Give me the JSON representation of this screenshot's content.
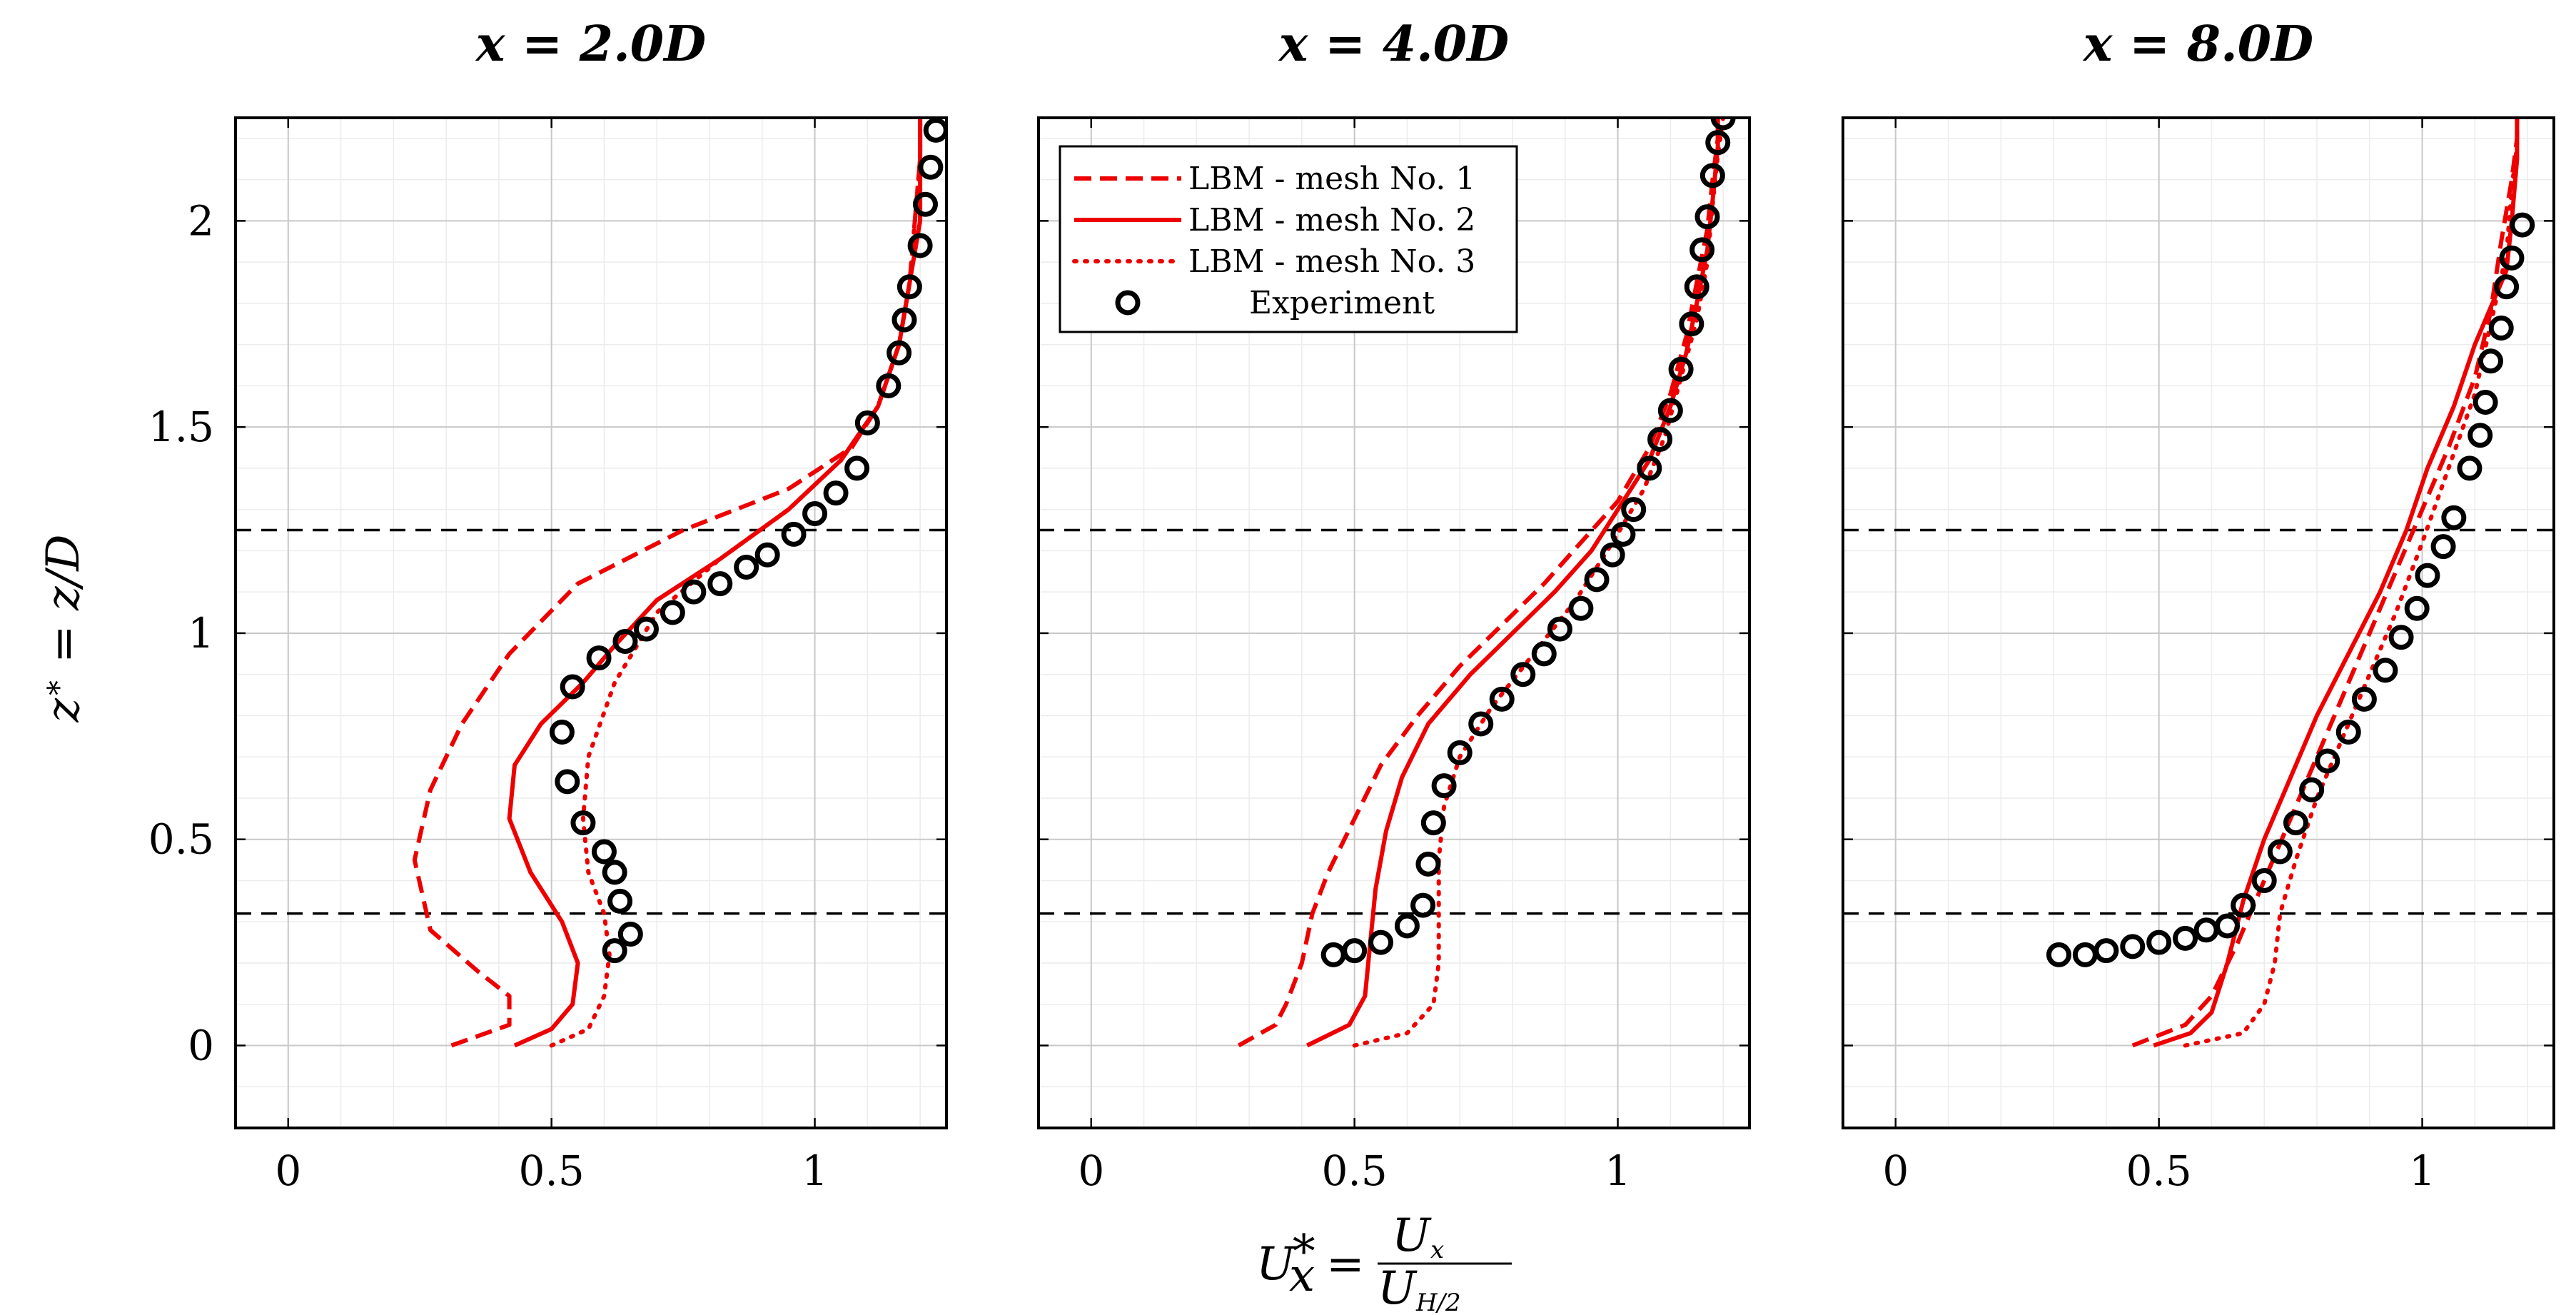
{
  "chart_data": [
    {
      "type": "line",
      "title": "x = 2.0D",
      "xlim": [
        -0.1,
        1.25
      ],
      "ylim": [
        -0.2,
        2.25
      ],
      "xticks": [
        "0",
        "0.5",
        "1"
      ],
      "yticks": [
        "0",
        "0.5",
        "1",
        "1.5",
        "2"
      ],
      "hlines": [
        0.32,
        1.25
      ],
      "series": [
        {
          "name": "LBM - mesh No. 1",
          "style": "dashed",
          "x": [
            0.31,
            0.42,
            0.42,
            0.36,
            0.27,
            0.24,
            0.27,
            0.33,
            0.42,
            0.55,
            0.75,
            0.95,
            1.07,
            1.12,
            1.16,
            1.18,
            1.19,
            1.2,
            1.2
          ],
          "y": [
            0.0,
            0.05,
            0.12,
            0.18,
            0.28,
            0.45,
            0.62,
            0.78,
            0.95,
            1.12,
            1.25,
            1.35,
            1.45,
            1.55,
            1.7,
            1.85,
            2.0,
            2.15,
            2.25
          ]
        },
        {
          "name": "LBM - mesh No. 2",
          "style": "solid",
          "x": [
            0.43,
            0.5,
            0.54,
            0.55,
            0.52,
            0.46,
            0.42,
            0.43,
            0.48,
            0.56,
            0.62,
            0.7,
            0.82,
            0.95,
            1.05,
            1.12,
            1.16,
            1.18,
            1.2,
            1.2
          ],
          "y": [
            0.0,
            0.04,
            0.1,
            0.2,
            0.3,
            0.42,
            0.55,
            0.68,
            0.78,
            0.88,
            0.97,
            1.08,
            1.18,
            1.3,
            1.42,
            1.55,
            1.7,
            1.85,
            2.0,
            2.25
          ]
        },
        {
          "name": "LBM - mesh No. 3",
          "style": "dotted",
          "x": [
            0.5,
            0.57,
            0.6,
            0.61,
            0.6,
            0.57,
            0.56,
            0.57,
            0.62,
            0.7,
            0.82,
            0.95,
            1.05,
            1.12,
            1.16,
            1.18,
            1.19,
            1.2,
            1.2
          ],
          "y": [
            0.0,
            0.04,
            0.12,
            0.22,
            0.32,
            0.42,
            0.55,
            0.7,
            0.88,
            1.05,
            1.18,
            1.3,
            1.42,
            1.55,
            1.7,
            1.85,
            2.0,
            2.15,
            2.25
          ]
        },
        {
          "name": "Experiment",
          "style": "markers",
          "x": [
            0.62,
            0.65,
            0.63,
            0.62,
            0.6,
            0.56,
            0.53,
            0.52,
            0.54,
            0.59,
            0.64,
            0.68,
            0.73,
            0.77,
            0.82,
            0.87,
            0.91,
            0.96,
            1.0,
            1.04,
            1.08,
            1.1,
            1.14,
            1.16,
            1.17,
            1.18,
            1.2,
            1.21,
            1.22,
            1.23
          ],
          "y": [
            0.23,
            0.27,
            0.35,
            0.42,
            0.47,
            0.54,
            0.64,
            0.76,
            0.87,
            0.94,
            0.98,
            1.01,
            1.05,
            1.1,
            1.12,
            1.16,
            1.19,
            1.24,
            1.29,
            1.34,
            1.4,
            1.51,
            1.6,
            1.68,
            1.76,
            1.84,
            1.94,
            2.04,
            2.13,
            2.22
          ]
        }
      ]
    },
    {
      "type": "line",
      "title": "x = 4.0D",
      "xlim": [
        -0.1,
        1.25
      ],
      "ylim": [
        -0.2,
        2.25
      ],
      "xticks": [
        "0",
        "0.5",
        "1"
      ],
      "yticks": [
        "0",
        "0.5",
        "1",
        "1.5",
        "2"
      ],
      "hlines": [
        0.32,
        1.25
      ],
      "series": [
        {
          "name": "LBM - mesh No. 1",
          "style": "dashed",
          "x": [
            0.28,
            0.35,
            0.37,
            0.4,
            0.42,
            0.45,
            0.5,
            0.55,
            0.62,
            0.7,
            0.78,
            0.86,
            0.93,
            1.0,
            1.06,
            1.1,
            1.13,
            1.15,
            1.17,
            1.18,
            1.19,
            1.19
          ],
          "y": [
            0.0,
            0.05,
            0.1,
            0.2,
            0.32,
            0.42,
            0.55,
            0.68,
            0.8,
            0.92,
            1.02,
            1.12,
            1.22,
            1.32,
            1.45,
            1.58,
            1.72,
            1.85,
            1.98,
            2.1,
            2.2,
            2.25
          ]
        },
        {
          "name": "LBM - mesh No. 2",
          "style": "solid",
          "x": [
            0.41,
            0.49,
            0.52,
            0.53,
            0.54,
            0.56,
            0.59,
            0.64,
            0.72,
            0.8,
            0.88,
            0.95,
            1.0,
            1.06,
            1.1,
            1.13,
            1.15,
            1.17,
            1.18,
            1.19,
            1.19
          ],
          "y": [
            0.0,
            0.05,
            0.12,
            0.25,
            0.38,
            0.52,
            0.65,
            0.78,
            0.9,
            1.0,
            1.1,
            1.2,
            1.3,
            1.42,
            1.55,
            1.68,
            1.8,
            1.93,
            2.05,
            2.18,
            2.25
          ]
        },
        {
          "name": "LBM - mesh No. 3",
          "style": "dotted",
          "x": [
            0.5,
            0.6,
            0.65,
            0.66,
            0.66,
            0.66,
            0.67,
            0.7,
            0.76,
            0.84,
            0.92,
            0.99,
            1.05,
            1.09,
            1.12,
            1.15,
            1.17,
            1.18,
            1.19,
            1.2
          ],
          "y": [
            0.0,
            0.03,
            0.1,
            0.2,
            0.32,
            0.45,
            0.58,
            0.7,
            0.82,
            0.95,
            1.08,
            1.22,
            1.35,
            1.48,
            1.62,
            1.76,
            1.9,
            2.04,
            2.16,
            2.25
          ]
        },
        {
          "name": "Experiment",
          "style": "markers",
          "x": [
            0.46,
            0.5,
            0.55,
            0.6,
            0.63,
            0.64,
            0.65,
            0.67,
            0.7,
            0.74,
            0.78,
            0.82,
            0.86,
            0.89,
            0.93,
            0.96,
            0.99,
            1.01,
            1.03,
            1.06,
            1.08,
            1.1,
            1.12,
            1.14,
            1.15,
            1.16,
            1.17,
            1.18,
            1.19,
            1.2
          ],
          "y": [
            0.22,
            0.23,
            0.25,
            0.29,
            0.34,
            0.44,
            0.54,
            0.63,
            0.71,
            0.78,
            0.84,
            0.9,
            0.95,
            1.01,
            1.06,
            1.13,
            1.19,
            1.24,
            1.3,
            1.4,
            1.47,
            1.54,
            1.64,
            1.75,
            1.84,
            1.93,
            2.01,
            2.11,
            2.19,
            2.25
          ]
        }
      ]
    },
    {
      "type": "line",
      "title": "x = 8.0D",
      "xlim": [
        -0.1,
        1.25
      ],
      "ylim": [
        -0.2,
        2.25
      ],
      "xticks": [
        "0",
        "0.5",
        "1"
      ],
      "yticks": [
        "0",
        "0.5",
        "1",
        "1.5",
        "2"
      ],
      "hlines": [
        0.32,
        1.25
      ],
      "series": [
        {
          "name": "LBM - mesh No. 1",
          "style": "dashed",
          "x": [
            0.45,
            0.55,
            0.6,
            0.65,
            0.7,
            0.75,
            0.8,
            0.85,
            0.9,
            0.95,
            1.0,
            1.05,
            1.1,
            1.13,
            1.15,
            1.17,
            1.18,
            1.18
          ],
          "y": [
            0.0,
            0.05,
            0.12,
            0.25,
            0.4,
            0.55,
            0.7,
            0.85,
            1.0,
            1.15,
            1.3,
            1.45,
            1.62,
            1.78,
            1.95,
            2.1,
            2.2,
            2.25
          ]
        },
        {
          "name": "LBM - mesh No. 2",
          "style": "solid",
          "x": [
            0.49,
            0.56,
            0.6,
            0.63,
            0.66,
            0.7,
            0.75,
            0.8,
            0.86,
            0.92,
            0.97,
            1.01,
            1.06,
            1.1,
            1.16,
            1.17,
            1.18,
            1.18
          ],
          "y": [
            0.0,
            0.03,
            0.08,
            0.2,
            0.35,
            0.5,
            0.65,
            0.8,
            0.95,
            1.1,
            1.25,
            1.4,
            1.55,
            1.7,
            1.88,
            2.0,
            2.15,
            2.25
          ]
        },
        {
          "name": "LBM - mesh No. 3",
          "style": "dotted",
          "x": [
            0.55,
            0.66,
            0.7,
            0.72,
            0.73,
            0.76,
            0.8,
            0.85,
            0.9,
            0.95,
            1.0,
            1.05,
            1.1,
            1.13,
            1.16,
            1.17,
            1.18,
            1.18
          ],
          "y": [
            0.0,
            0.03,
            0.1,
            0.2,
            0.32,
            0.45,
            0.6,
            0.75,
            0.9,
            1.05,
            1.22,
            1.4,
            1.58,
            1.75,
            1.92,
            2.08,
            2.18,
            2.25
          ]
        },
        {
          "name": "Experiment",
          "style": "markers",
          "x": [
            0.31,
            0.36,
            0.4,
            0.45,
            0.5,
            0.55,
            0.59,
            0.63,
            0.66,
            0.7,
            0.73,
            0.76,
            0.79,
            0.82,
            0.86,
            0.89,
            0.93,
            0.96,
            0.99,
            1.01,
            1.04,
            1.06,
            1.09,
            1.11,
            1.12,
            1.13,
            1.15,
            1.16,
            1.17,
            1.19
          ],
          "y": [
            0.22,
            0.22,
            0.23,
            0.24,
            0.25,
            0.26,
            0.28,
            0.29,
            0.34,
            0.4,
            0.47,
            0.54,
            0.62,
            0.69,
            0.76,
            0.84,
            0.91,
            0.99,
            1.06,
            1.14,
            1.21,
            1.28,
            1.4,
            1.48,
            1.56,
            1.66,
            1.74,
            1.84,
            1.91,
            1.99
          ]
        }
      ]
    }
  ],
  "ylabel": "z* = z/D",
  "xlabel": "U*x = Ux / UH/2",
  "legend": {
    "location": "top-left of middle panel",
    "entries": [
      "LBM - mesh No. 1",
      "LBM - mesh No. 2",
      "LBM - mesh No. 3",
      "Experiment"
    ]
  },
  "colors": {
    "lbm": "#ee0000",
    "experiment": "#000000",
    "ref_lines": "#000000"
  }
}
